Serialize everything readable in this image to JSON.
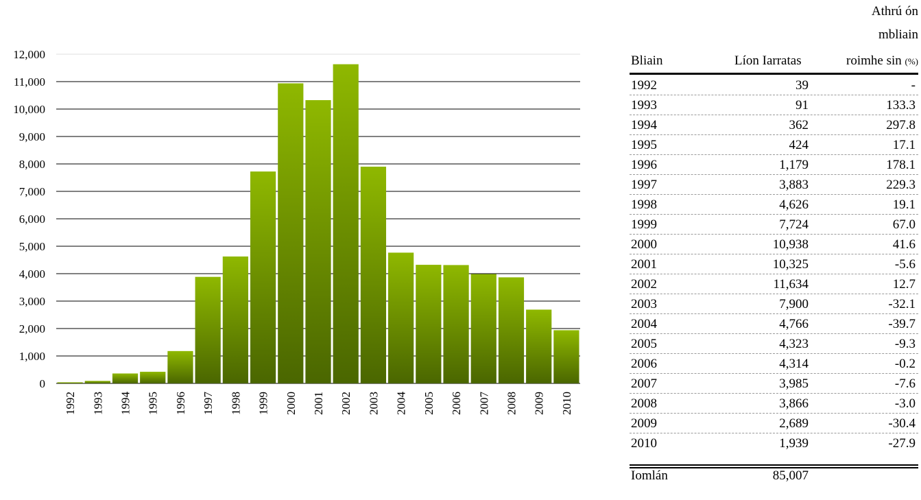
{
  "chart_data": {
    "type": "bar",
    "categories": [
      "1992",
      "1993",
      "1994",
      "1995",
      "1996",
      "1997",
      "1998",
      "1999",
      "2000",
      "2001",
      "2002",
      "2003",
      "2004",
      "2005",
      "2006",
      "2007",
      "2008",
      "2009",
      "2010"
    ],
    "values": [
      39,
      91,
      362,
      424,
      1179,
      3883,
      4626,
      7724,
      10938,
      10325,
      11634,
      7900,
      4766,
      4323,
      4314,
      3985,
      3866,
      2689,
      1939
    ],
    "ylim": [
      0,
      12000
    ],
    "yticks": [
      "0",
      "1,000",
      "2,000",
      "3,000",
      "4,000",
      "5,000",
      "6,000",
      "7,000",
      "8,000",
      "9,000",
      "10,000",
      "11,000",
      "12,000"
    ],
    "grid": true,
    "bar_color": "#8fb800",
    "bar_color_dark": "#4a6600"
  },
  "table": {
    "col_year_header": "Bliain",
    "col_count_header": "Líon Iarratas",
    "col_change_header_line1": "Athrú ón",
    "col_change_header_line2": "mbliain",
    "col_change_header_line3": "roimhe sin",
    "col_change_header_unit": "(%)",
    "rows": [
      {
        "year": "1992",
        "count": "39",
        "change": "-"
      },
      {
        "year": "1993",
        "count": "91",
        "change": "133.3"
      },
      {
        "year": "1994",
        "count": "362",
        "change": "297.8"
      },
      {
        "year": "1995",
        "count": "424",
        "change": "17.1"
      },
      {
        "year": "1996",
        "count": "1,179",
        "change": "178.1"
      },
      {
        "year": "1997",
        "count": "3,883",
        "change": "229.3"
      },
      {
        "year": "1998",
        "count": "4,626",
        "change": "19.1"
      },
      {
        "year": "1999",
        "count": "7,724",
        "change": "67.0"
      },
      {
        "year": "2000",
        "count": "10,938",
        "change": "41.6"
      },
      {
        "year": "2001",
        "count": "10,325",
        "change": "-5.6"
      },
      {
        "year": "2002",
        "count": "11,634",
        "change": "12.7"
      },
      {
        "year": "2003",
        "count": "7,900",
        "change": "-32.1"
      },
      {
        "year": "2004",
        "count": "4,766",
        "change": "-39.7"
      },
      {
        "year": "2005",
        "count": "4,323",
        "change": "-9.3"
      },
      {
        "year": "2006",
        "count": "4,314",
        "change": "-0.2"
      },
      {
        "year": "2007",
        "count": "3,985",
        "change": "-7.6"
      },
      {
        "year": "2008",
        "count": "3,866",
        "change": "-3.0"
      },
      {
        "year": "2009",
        "count": "2,689",
        "change": "-30.4"
      },
      {
        "year": "2010",
        "count": "1,939",
        "change": "-27.9"
      }
    ],
    "total_label": "Iomlán",
    "total_value": "85,007"
  }
}
